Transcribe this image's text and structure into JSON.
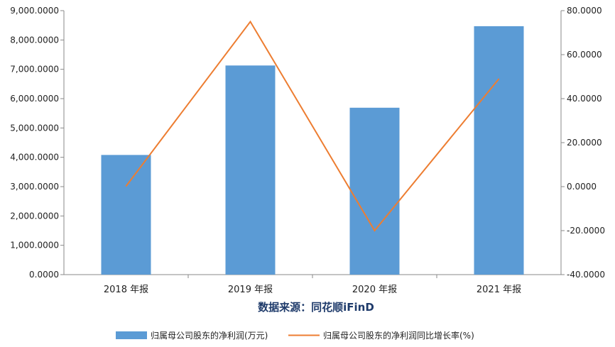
{
  "chart_data": {
    "type": "bar",
    "categories": [
      "2018 年报",
      "2019 年报",
      "2020 年报",
      "2021 年报"
    ],
    "series": [
      {
        "name": "归属母公司股东的净利润(万元)",
        "type": "bar",
        "axis": "left",
        "color": "#5b9bd5",
        "values": [
          4080,
          7130,
          5690,
          8470
        ]
      },
      {
        "name": "归属母公司股东的净利润同比增长率(%)",
        "type": "line",
        "axis": "right",
        "color": "#ed7d31",
        "values": [
          0.2,
          75.0,
          -20.0,
          49.0
        ]
      }
    ],
    "y_left": {
      "lim": [
        0,
        9000
      ],
      "ticks": [
        "0.0000",
        "1,000.0000",
        "2,000.0000",
        "3,000.0000",
        "4,000.0000",
        "5,000.0000",
        "6,000.0000",
        "7,000.0000",
        "8,000.0000",
        "9,000.0000"
      ]
    },
    "y_right": {
      "lim": [
        -40,
        80
      ],
      "ticks": [
        "-40.0000",
        "-20.0000",
        "0.0000",
        "20.0000",
        "40.0000",
        "60.0000",
        "80.0000"
      ]
    },
    "xlabel": "数据来源：同花顺iFinD",
    "legend_position": "bottom",
    "grid": false
  }
}
